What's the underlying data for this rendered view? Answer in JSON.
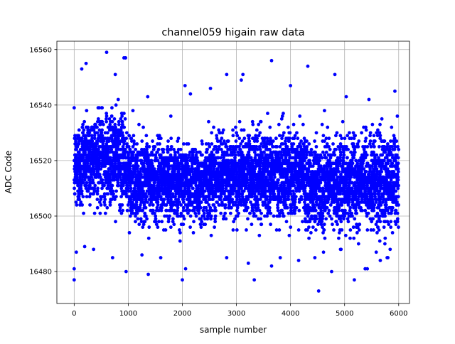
{
  "chart_data": {
    "type": "scatter",
    "title": "channel059 higain raw data",
    "xlabel": "sample number",
    "ylabel": "ADC Code",
    "xlim": [
      -320,
      6200
    ],
    "ylim": [
      16468.5,
      16563
    ],
    "xticks": [
      0,
      1000,
      2000,
      3000,
      4000,
      5000,
      6000
    ],
    "yticks": [
      16480,
      16500,
      16520,
      16540,
      16560
    ],
    "grid": true,
    "marker_color": "#0000ff",
    "n_points": 6000,
    "segments": [
      {
        "x0": 0,
        "x1": 150,
        "core_min": 16503,
        "core_max": 16533
      },
      {
        "x0": 150,
        "x1": 950,
        "core_min": 16505,
        "core_max": 16536
      },
      {
        "x0": 950,
        "x1": 1100,
        "core_min": 16500,
        "core_max": 16530
      },
      {
        "x0": 1100,
        "x1": 2500,
        "core_min": 16499,
        "core_max": 16526
      },
      {
        "x0": 2500,
        "x1": 3150,
        "core_min": 16501,
        "core_max": 16528
      },
      {
        "x0": 3150,
        "x1": 4300,
        "core_min": 16500,
        "core_max": 16530
      },
      {
        "x0": 4300,
        "x1": 5000,
        "core_min": 16496,
        "core_max": 16526
      },
      {
        "x0": 5000,
        "x1": 6000,
        "core_min": 16496,
        "core_max": 16528
      }
    ],
    "outliers": [
      {
        "x": 600,
        "y": 16559
      },
      {
        "x": 950,
        "y": 16557
      },
      {
        "x": 920,
        "y": 16557
      },
      {
        "x": 220,
        "y": 16555
      },
      {
        "x": 3650,
        "y": 16556
      },
      {
        "x": 4320,
        "y": 16554
      },
      {
        "x": 2820,
        "y": 16551
      },
      {
        "x": 4820,
        "y": 16551
      },
      {
        "x": 760,
        "y": 16551
      },
      {
        "x": 3120,
        "y": 16551
      },
      {
        "x": 140,
        "y": 16553
      },
      {
        "x": 3090,
        "y": 16549
      },
      {
        "x": 5030,
        "y": 16543
      },
      {
        "x": 5930,
        "y": 16545
      },
      {
        "x": 5450,
        "y": 16542
      },
      {
        "x": 1360,
        "y": 16543
      },
      {
        "x": 2050,
        "y": 16547
      },
      {
        "x": 2150,
        "y": 16544
      },
      {
        "x": 4000,
        "y": 16547
      },
      {
        "x": 2520,
        "y": 16546
      },
      {
        "x": 0,
        "y": 16477
      },
      {
        "x": 0,
        "y": 16481
      },
      {
        "x": 960,
        "y": 16480
      },
      {
        "x": 1370,
        "y": 16479
      },
      {
        "x": 2000,
        "y": 16477
      },
      {
        "x": 2060,
        "y": 16481
      },
      {
        "x": 3330,
        "y": 16477
      },
      {
        "x": 3650,
        "y": 16482
      },
      {
        "x": 4520,
        "y": 16473
      },
      {
        "x": 4760,
        "y": 16480
      },
      {
        "x": 5180,
        "y": 16477
      },
      {
        "x": 5380,
        "y": 16481
      },
      {
        "x": 5420,
        "y": 16481
      },
      {
        "x": 2820,
        "y": 16485
      },
      {
        "x": 3220,
        "y": 16483
      },
      {
        "x": 710,
        "y": 16485
      },
      {
        "x": 4150,
        "y": 16484
      },
      {
        "x": 5660,
        "y": 16484
      },
      {
        "x": 4450,
        "y": 16485
      },
      {
        "x": 1600,
        "y": 16485
      },
      {
        "x": 40,
        "y": 16487
      },
      {
        "x": 3810,
        "y": 16485
      },
      {
        "x": 5800,
        "y": 16485
      }
    ]
  }
}
